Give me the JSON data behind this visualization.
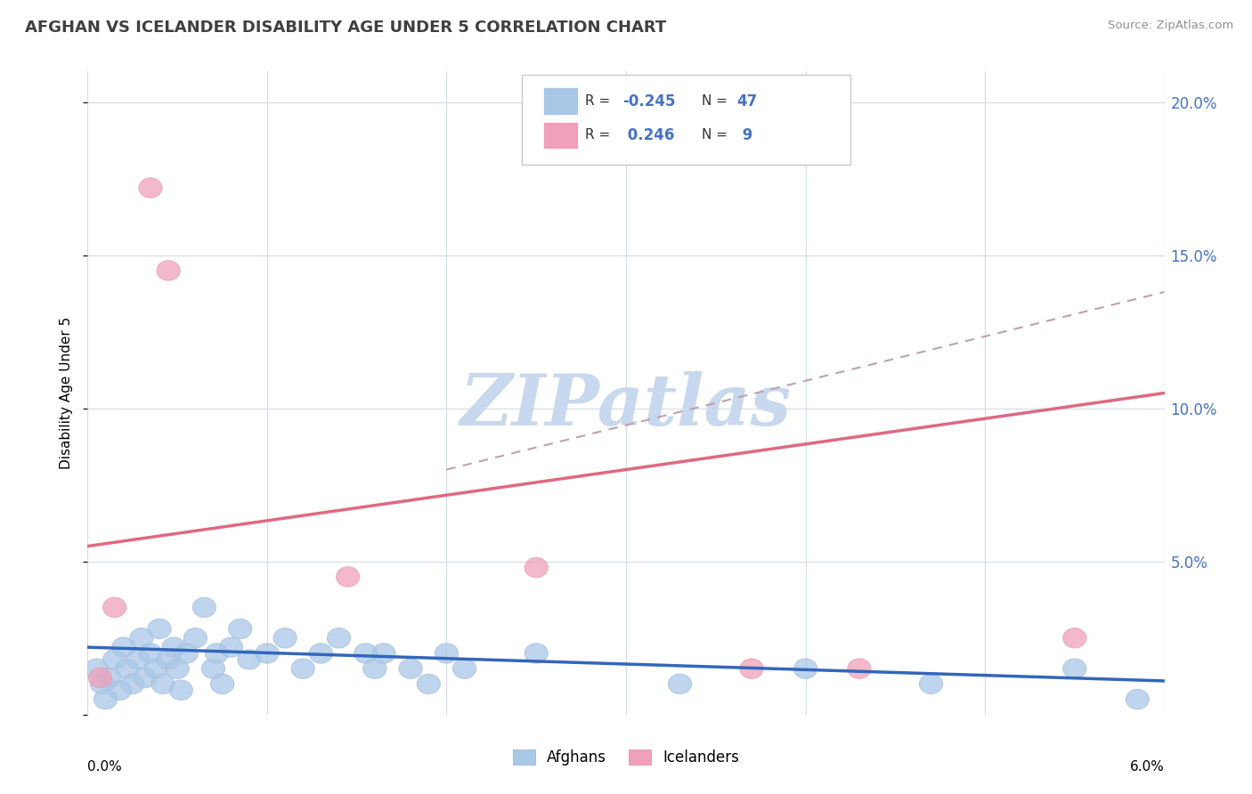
{
  "title": "AFGHAN VS ICELANDER DISABILITY AGE UNDER 5 CORRELATION CHART",
  "source": "Source: ZipAtlas.com",
  "ylabel": "Disability Age Under 5",
  "xlim": [
    0.0,
    6.0
  ],
  "ylim": [
    0.0,
    21.0
  ],
  "yticks": [
    0.0,
    5.0,
    10.0,
    15.0,
    20.0
  ],
  "ytick_labels": [
    "",
    "5.0%",
    "10.0%",
    "15.0%",
    "20.0%"
  ],
  "afghan_R": -0.245,
  "afghan_N": 47,
  "icelander_R": 0.246,
  "icelander_N": 9,
  "afghan_color": "#a8c8e8",
  "afghan_line_color": "#3366bb",
  "icelander_color": "#f0a0b8",
  "icelander_line_color": "#e06880",
  "dashed_line_color": "#c0a0b0",
  "background_color": "#ffffff",
  "grid_color": "#d4dce8",
  "label_color": "#4472c4",
  "watermark_color": "#c8d8ee",
  "afghans_x": [
    0.05,
    0.08,
    0.1,
    0.12,
    0.15,
    0.18,
    0.2,
    0.22,
    0.25,
    0.28,
    0.3,
    0.32,
    0.35,
    0.38,
    0.4,
    0.42,
    0.45,
    0.48,
    0.5,
    0.52,
    0.55,
    0.6,
    0.65,
    0.7,
    0.72,
    0.75,
    0.8,
    0.85,
    0.9,
    1.0,
    1.1,
    1.2,
    1.3,
    1.4,
    1.55,
    1.6,
    1.65,
    1.8,
    1.9,
    2.0,
    2.1,
    2.5,
    3.3,
    4.0,
    4.7,
    5.5,
    5.85
  ],
  "afghans_y": [
    1.5,
    1.0,
    0.5,
    1.2,
    1.8,
    0.8,
    2.2,
    1.5,
    1.0,
    1.8,
    2.5,
    1.2,
    2.0,
    1.5,
    2.8,
    1.0,
    1.8,
    2.2,
    1.5,
    0.8,
    2.0,
    2.5,
    3.5,
    1.5,
    2.0,
    1.0,
    2.2,
    2.8,
    1.8,
    2.0,
    2.5,
    1.5,
    2.0,
    2.5,
    2.0,
    1.5,
    2.0,
    1.5,
    1.0,
    2.0,
    1.5,
    2.0,
    1.0,
    1.5,
    1.0,
    1.5,
    0.5
  ],
  "icelanders_x": [
    0.07,
    0.15,
    0.35,
    0.45,
    1.45,
    2.5,
    3.7,
    4.3,
    5.5
  ],
  "icelanders_y": [
    1.2,
    3.5,
    17.2,
    14.5,
    4.5,
    4.8,
    1.5,
    1.5,
    2.5
  ],
  "afghan_line_x0": 0.0,
  "afghan_line_x1": 6.0,
  "afghan_line_y0": 2.2,
  "afghan_line_y1": 1.1,
  "icelander_line_x0": 0.0,
  "icelander_line_x1": 6.0,
  "icelander_line_y0": 5.5,
  "icelander_line_y1": 10.5,
  "dashed_line_x0": 2.0,
  "dashed_line_x1": 6.0,
  "dashed_line_y0": 8.0,
  "dashed_line_y1": 13.8
}
